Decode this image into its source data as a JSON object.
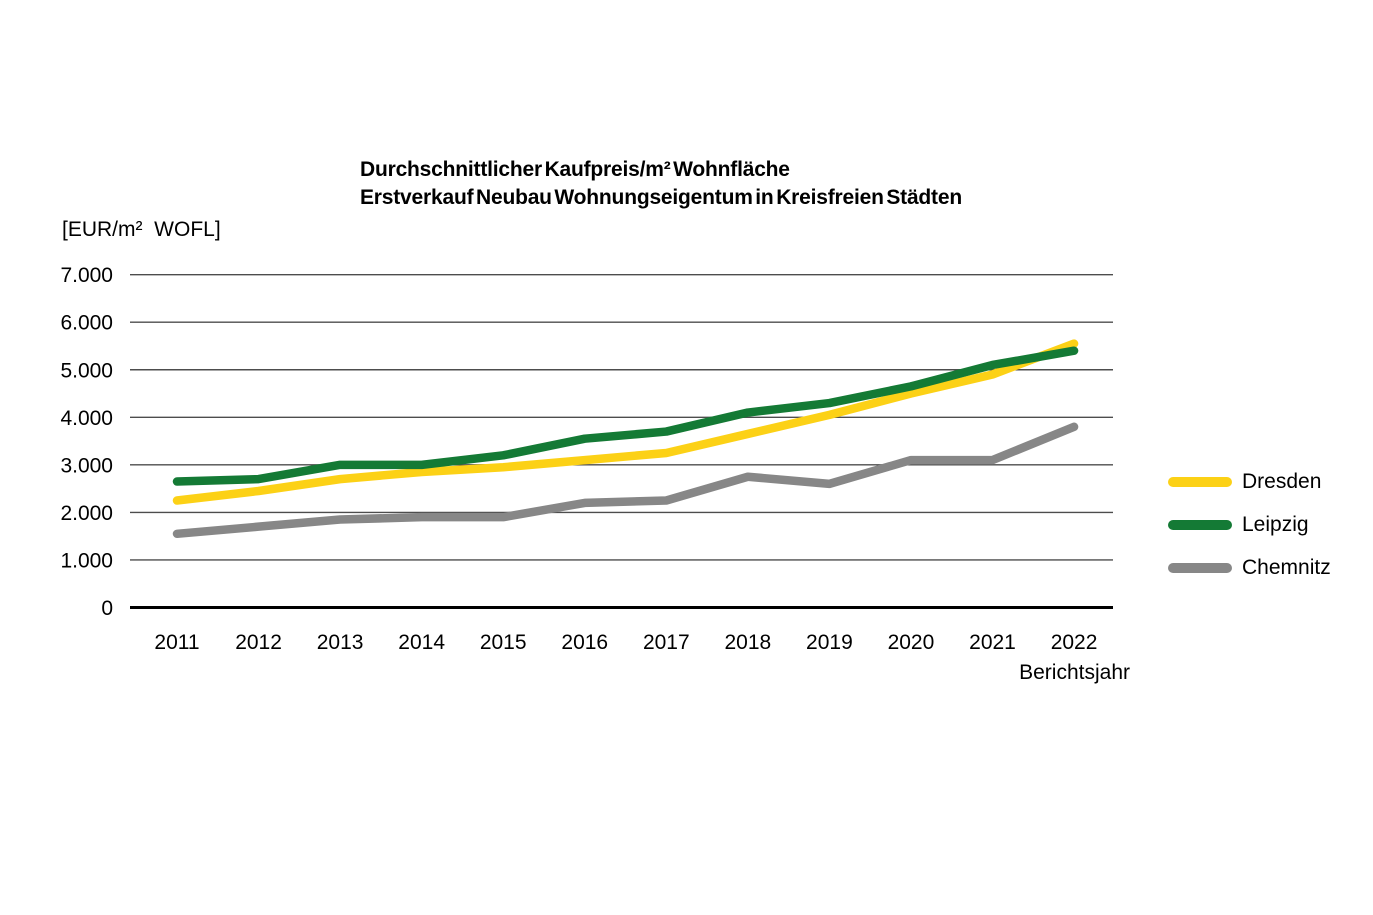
{
  "title": {
    "line1": "Durchschnittlicher Kaufpreis/m² Wohnfläche",
    "line2": "Erstverkauf Neubau Wohnungseigentum in Kreisfreien Städten"
  },
  "y_axis_unit": "[EUR/m²  WOFL]",
  "x_axis_label": "Berichtsjahr",
  "colors": {
    "gridline": "#4d4d4d",
    "zero_axis": "#000000",
    "text": "#000000"
  },
  "chart_data": {
    "type": "line",
    "x": [
      2011,
      2012,
      2013,
      2014,
      2015,
      2016,
      2017,
      2018,
      2019,
      2020,
      2021,
      2022
    ],
    "series": [
      {
        "name": "Dresden",
        "color": "#fcd116",
        "values": [
          2250,
          2450,
          2700,
          2850,
          2950,
          3100,
          3250,
          3650,
          4050,
          4500,
          4900,
          5550
        ]
      },
      {
        "name": "Leipzig",
        "color": "#147a35",
        "values": [
          2650,
          2700,
          3000,
          3000,
          3200,
          3550,
          3700,
          4100,
          4300,
          4650,
          5100,
          5400
        ]
      },
      {
        "name": "Chemnitz",
        "color": "#878787",
        "values": [
          1550,
          1700,
          1850,
          1900,
          1900,
          2200,
          2250,
          2750,
          2600,
          3100,
          3100,
          3800
        ]
      }
    ],
    "ylim": [
      0,
      7000
    ],
    "y_ticks": [
      "7.000",
      "6.000",
      "5.000",
      "4.000",
      "3.000",
      "2.000",
      "1.000",
      "0"
    ],
    "y_tick_values": [
      7000,
      6000,
      5000,
      4000,
      3000,
      2000,
      1000,
      0
    ],
    "grid": true,
    "legend_position": "right",
    "xlabel": "Berichtsjahr",
    "ylabel": "[EUR/m² WOFL]"
  }
}
